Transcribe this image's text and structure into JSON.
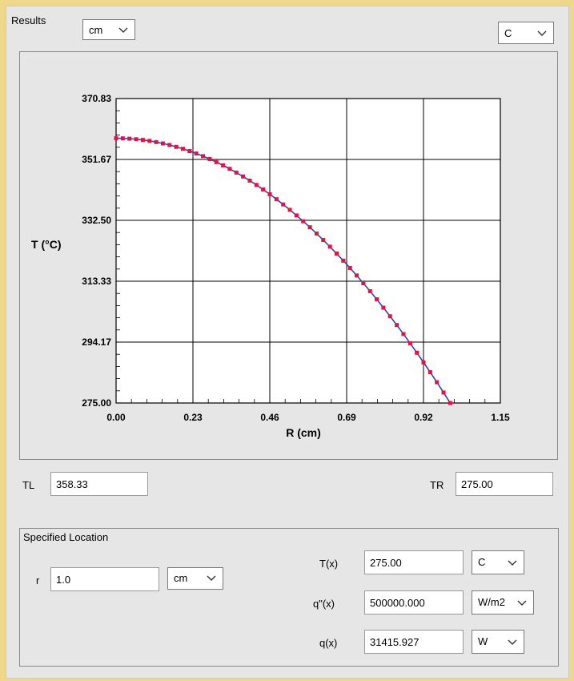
{
  "results": {
    "title": "Results",
    "unit_select": "cm",
    "temp_unit_select": "C"
  },
  "chart_data": {
    "type": "line",
    "xlabel": "R (cm)",
    "ylabel": "T (°C)",
    "xlim": [
      0.0,
      1.15
    ],
    "ylim": [
      275.0,
      370.83
    ],
    "x_ticks": [
      "0.00",
      "0.23",
      "0.46",
      "0.69",
      "0.92",
      "1.15"
    ],
    "y_ticks": [
      "275.00",
      "294.17",
      "313.33",
      "332.50",
      "351.67",
      "370.83"
    ],
    "grid": true,
    "series": [
      {
        "color": "#2f3fd6",
        "marker_color": "#e0143c",
        "x": [
          0.0,
          0.02,
          0.04,
          0.06,
          0.08,
          0.1,
          0.12,
          0.14,
          0.16,
          0.18,
          0.2,
          0.22,
          0.24,
          0.26,
          0.28,
          0.3,
          0.32,
          0.34,
          0.36,
          0.38,
          0.4,
          0.42,
          0.44,
          0.46,
          0.48,
          0.5,
          0.52,
          0.54,
          0.56,
          0.58,
          0.6,
          0.62,
          0.64,
          0.66,
          0.68,
          0.7,
          0.72,
          0.74,
          0.76,
          0.78,
          0.8,
          0.82,
          0.84,
          0.86,
          0.88,
          0.9,
          0.92,
          0.94,
          0.96,
          0.98,
          1.0
        ],
        "y": [
          358.33,
          358.3,
          358.2,
          358.03,
          357.8,
          357.5,
          357.13,
          356.7,
          356.2,
          355.63,
          355.0,
          354.3,
          353.53,
          352.7,
          351.8,
          350.83,
          349.8,
          348.7,
          347.53,
          346.3,
          345.0,
          343.63,
          342.2,
          340.7,
          339.13,
          337.5,
          335.8,
          334.03,
          332.2,
          330.3,
          328.33,
          326.3,
          324.2,
          322.03,
          319.8,
          317.5,
          315.13,
          312.7,
          310.2,
          307.63,
          305.0,
          302.3,
          299.53,
          296.7,
          293.8,
          290.83,
          287.8,
          284.7,
          281.53,
          278.3,
          275.0
        ]
      }
    ]
  },
  "edges": {
    "tl_label": "TL",
    "tl_value": "358.33",
    "tr_label": "TR",
    "tr_value": "275.00"
  },
  "specified": {
    "title": "Specified Location",
    "r_label": "r",
    "r_value": "1.0",
    "r_unit": "cm",
    "tx_label": "T(x)",
    "tx_value": "275.00",
    "tx_unit": "C",
    "qpp_label": "q\"(x)",
    "qpp_value": "500000.000",
    "qpp_unit": "W/m2",
    "q_label": "q(x)",
    "q_value": "31415.927",
    "q_unit": "W"
  }
}
